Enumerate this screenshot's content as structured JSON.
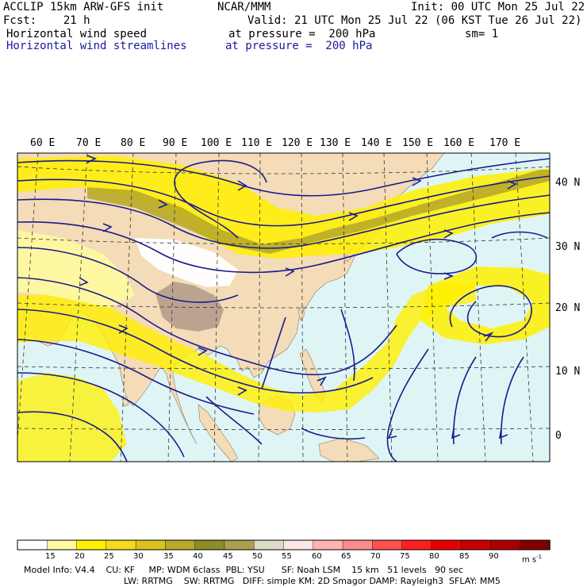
{
  "header": {
    "model": "ACCLIP 15km ARW-GFS init",
    "center": "NCAR/MMM",
    "init": "Init: 00 UTC Mon 25 Jul 22",
    "fcst": "Fcst:    21 h",
    "valid": "Valid: 21 UTC Mon 25 Jul 22 (06 KST Tue 26 Jul 22)",
    "field1": "Horizontal wind speed",
    "field1_level": "at pressure =  200 hPa",
    "sm": "sm= 1",
    "field2": "Horizontal wind streamlines",
    "field2_level": "at pressure =  200 hPa"
  },
  "map": {
    "lon_labels": [
      "60 E",
      "70 E",
      "80 E",
      "90 E",
      "100 E",
      "110 E",
      "120 E",
      "130 E",
      "140 E",
      "150 E",
      "160 E",
      "170 E"
    ],
    "lat_labels": [
      "40 N",
      "30 N",
      "20 N",
      "10 N",
      "0"
    ],
    "colors": {
      "ocean": "#dff5f5",
      "land": "#f3dcb7",
      "streamline": "#1a1a8c",
      "grid": "#333333"
    }
  },
  "colorbar": {
    "levels": [
      "15",
      "20",
      "25",
      "30",
      "35",
      "40",
      "45",
      "50",
      "55",
      "60",
      "65",
      "70",
      "75",
      "80",
      "85",
      "90"
    ],
    "unit": "m s",
    "unit_exp": "-1",
    "colors": [
      "#ffffff",
      "#fffaa0",
      "#fff000",
      "#f5dc1e",
      "#dcc31e",
      "#b9aa28",
      "#8c8c28",
      "#aaa050",
      "#dcdcc8",
      "#ffe6e6",
      "#ffb4b4",
      "#ff8c8c",
      "#ff5050",
      "#ff1e1e",
      "#e60000",
      "#c80000",
      "#aa0000",
      "#820000"
    ]
  },
  "footer": {
    "line1": "Model Info: V4.4    CU: KF     MP: WDM 6class  PBL: YSU      SF: Noah LSM    15 km   51 levels   90 sec",
    "line2": "LW: RRTMG    SW: RRTMG   DIFF: simple KM: 2D Smagor DAMP: Rayleigh3  SFLAY: MM5"
  }
}
